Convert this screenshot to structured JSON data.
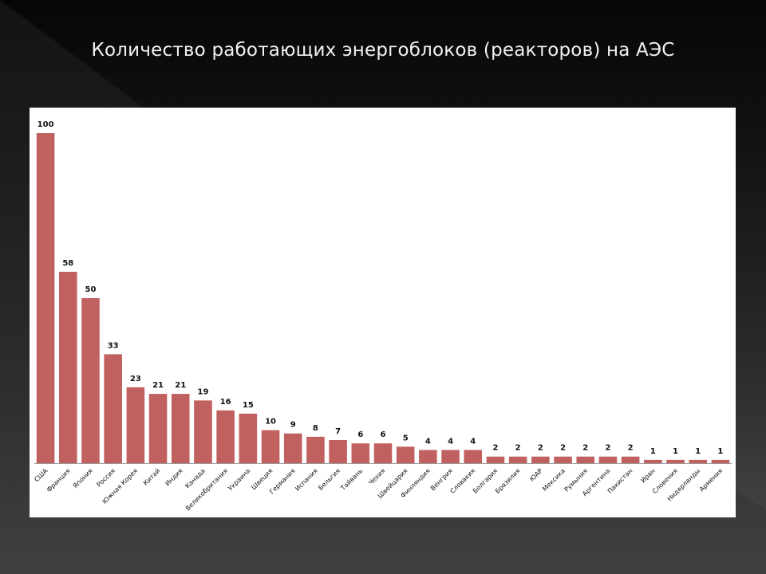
{
  "slide": {
    "title": "Количество работающих энергоблоков (реакторов) на АЭС"
  },
  "colors": {
    "bar": "#c0605f",
    "axis": "#9a9a9a"
  },
  "chart_data": {
    "type": "bar",
    "title": "",
    "xlabel": "",
    "ylabel": "",
    "ylim": [
      0,
      100
    ],
    "grid": false,
    "legend": "none",
    "categories": [
      "США",
      "Франция",
      "Япония",
      "Россия",
      "Южная Корея",
      "Китай",
      "Индия",
      "Канада",
      "Великобритания",
      "Украина",
      "Швеция",
      "Германия",
      "Испания",
      "Бельгия",
      "Тайвань",
      "Чехия",
      "Швейцария",
      "Финляндия",
      "Венгрия",
      "Словакия",
      "Болгария",
      "Бразилия",
      "ЮАР",
      "Мексика",
      "Румыния",
      "Аргентина",
      "Пакистан",
      "Иран",
      "Словения",
      "Нидерланды",
      "Армения"
    ],
    "values": [
      100,
      58,
      50,
      33,
      23,
      21,
      21,
      19,
      16,
      15,
      10,
      9,
      8,
      7,
      6,
      6,
      5,
      4,
      4,
      4,
      2,
      2,
      2,
      2,
      2,
      2,
      2,
      1,
      1,
      1,
      1
    ]
  }
}
